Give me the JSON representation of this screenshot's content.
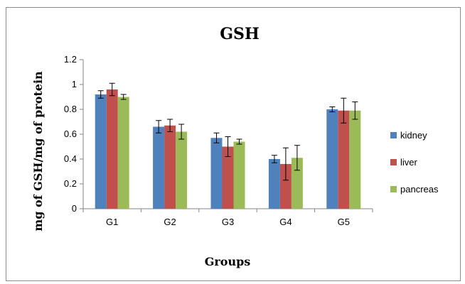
{
  "chart_data": {
    "type": "bar",
    "title": "GSH",
    "xlabel": "Groups",
    "ylabel": "mg of GSH/mg of protein",
    "categories": [
      "G1",
      "G2",
      "G3",
      "G4",
      "G5"
    ],
    "ylim": [
      0,
      1.2
    ],
    "yticks": [
      "0",
      "0.2",
      "0.4",
      "0.6",
      "0.8",
      "1",
      "1.2"
    ],
    "grid": false,
    "legend_position": "right",
    "series": [
      {
        "name": "kidney",
        "color": "#4F81BD",
        "values": [
          0.92,
          0.66,
          0.57,
          0.4,
          0.8
        ],
        "errors": [
          0.03,
          0.05,
          0.04,
          0.03,
          0.02
        ]
      },
      {
        "name": "liver",
        "color": "#C0504D",
        "values": [
          0.96,
          0.67,
          0.5,
          0.36,
          0.79
        ],
        "errors": [
          0.05,
          0.05,
          0.08,
          0.13,
          0.1
        ]
      },
      {
        "name": "pancreas",
        "color": "#9BBB59",
        "values": [
          0.9,
          0.62,
          0.54,
          0.41,
          0.79
        ],
        "errors": [
          0.02,
          0.06,
          0.02,
          0.1,
          0.07
        ]
      }
    ]
  }
}
